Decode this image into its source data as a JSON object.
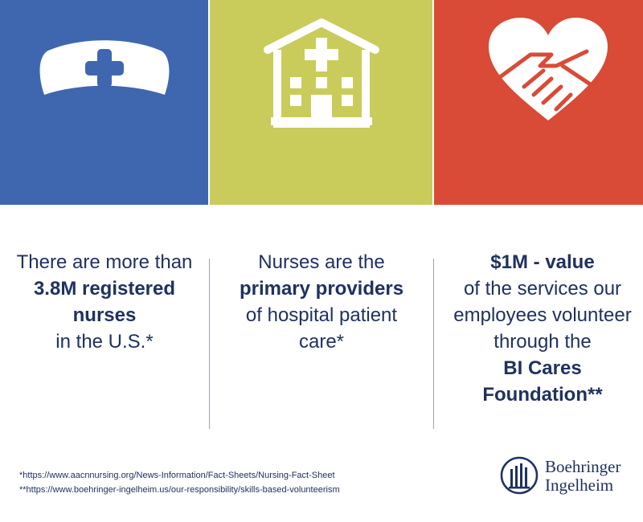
{
  "panels": [
    {
      "icon": "nurse-cap-icon",
      "color": "#3e67b0"
    },
    {
      "icon": "hospital-icon",
      "color": "#c9cc5b"
    },
    {
      "icon": "heart-handshake-icon",
      "color": "#d94a37"
    }
  ],
  "col1": {
    "pre": "There are more than",
    "bold": "3.8M registered nurses",
    "post": "in the U.S.*"
  },
  "col2": {
    "pre": "Nurses are the",
    "bold": "primary providers",
    "post": "of hospital patient care*"
  },
  "col3": {
    "bold1": "$1M - value",
    "mid": "of the services our employees volunteer through the",
    "bold2": "BI Cares Foundation**"
  },
  "footnotes": [
    "*https://www.aacnnursing.org/News-Information/Fact-Sheets/Nursing-Fact-Sheet",
    "**https://www.boehringer-ingelheim.us/our-responsibility/skills-based-volunteerism"
  ],
  "logo": {
    "line1": "Boehringer",
    "line2": "Ingelheim"
  },
  "colors": {
    "text": "#1f3160",
    "blue": "#3e67b0",
    "green": "#c9cc5b",
    "red": "#d94a37"
  }
}
